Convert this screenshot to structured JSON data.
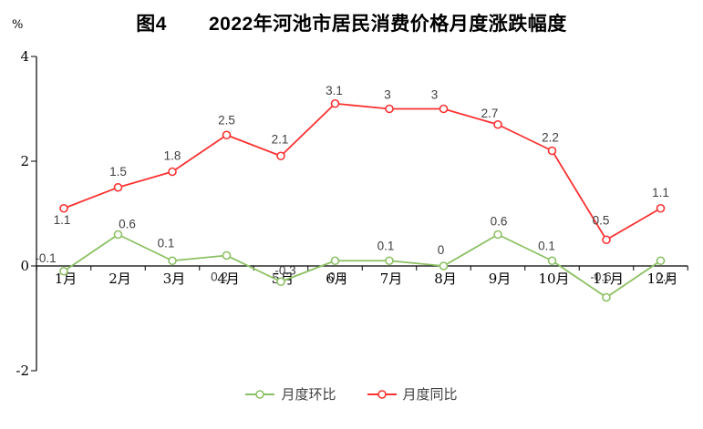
{
  "figure": {
    "title_fig": "图4",
    "title_main": "2022年河池市居民消费价格月度涨跌幅度",
    "unit_label": "%"
  },
  "chart_data": {
    "type": "line",
    "title": "图4 2022年河池市居民消费价格月度涨跌幅度",
    "ylabel": "%",
    "xlabel": "",
    "categories": [
      "1月",
      "2月",
      "3月",
      "4月",
      "5月",
      "6月",
      "7月",
      "8月",
      "9月",
      "10月",
      "11月",
      "12月"
    ],
    "series": [
      {
        "name": "月度环比",
        "color": "#8cc063",
        "marker": "circle-open",
        "values": [
          -0.1,
          0.6,
          0.1,
          0.2,
          -0.3,
          0.1,
          0.1,
          0,
          0.6,
          0.1,
          -0.6,
          0.1
        ],
        "label_offsets": [
          [
            -20,
            -10
          ],
          [
            10,
            -7
          ],
          [
            -7,
            -15
          ],
          [
            -8,
            28
          ],
          [
            5,
            -8
          ],
          [
            2,
            22
          ],
          [
            -4,
            -12
          ],
          [
            -3,
            -13
          ],
          [
            1,
            -10
          ],
          [
            -6,
            -12
          ],
          [
            -6,
            -18
          ],
          [
            4,
            22
          ]
        ]
      },
      {
        "name": "月度同比",
        "color": "#fa3232",
        "marker": "circle-open",
        "values": [
          1.1,
          1.5,
          1.8,
          2.5,
          2.1,
          3.1,
          3,
          3,
          2.7,
          2.2,
          0.5,
          1.1
        ],
        "label_offsets": [
          [
            -2,
            17
          ],
          [
            0,
            -13
          ],
          [
            0,
            -13
          ],
          [
            0,
            -12
          ],
          [
            -1,
            -14
          ],
          [
            -1,
            -10
          ],
          [
            -2,
            -11
          ],
          [
            -10,
            -11
          ],
          [
            -9,
            -8
          ],
          [
            -2,
            -10
          ],
          [
            -6,
            -17
          ],
          [
            0,
            -13
          ]
        ]
      }
    ],
    "ylim": [
      -2,
      4
    ],
    "yticks": [
      4,
      2,
      0,
      -2
    ],
    "grid": false,
    "legend_position": "bottom",
    "data_labels": true
  }
}
